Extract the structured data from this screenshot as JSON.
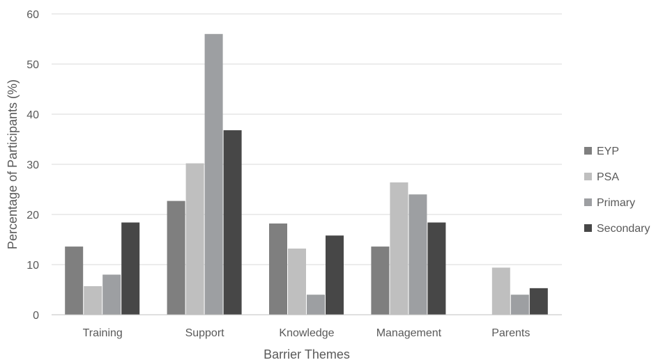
{
  "chart_data": {
    "type": "bar",
    "title": "",
    "xlabel": "Barrier Themes",
    "ylabel": "Percentage of Participants (%)",
    "ylim": [
      0,
      60
    ],
    "yticks": [
      0,
      10,
      20,
      30,
      40,
      50,
      60
    ],
    "grid": true,
    "legend_position": "right",
    "categories": [
      "Training",
      "Support",
      "Knowledge",
      "Management",
      "Parents"
    ],
    "series": [
      {
        "name": "EYP",
        "color": "#7f7f7f",
        "values": [
          13.6,
          22.7,
          18.2,
          13.6,
          0
        ]
      },
      {
        "name": "PSA",
        "color": "#bfbfbf",
        "values": [
          5.7,
          30.2,
          13.2,
          26.4,
          9.4
        ]
      },
      {
        "name": "Primary",
        "color": "#9d9fa2",
        "values": [
          8.0,
          56.0,
          4.0,
          24.0,
          4.0
        ]
      },
      {
        "name": "Secondary",
        "color": "#474747",
        "values": [
          18.4,
          36.8,
          15.8,
          18.4,
          5.3
        ]
      }
    ]
  }
}
